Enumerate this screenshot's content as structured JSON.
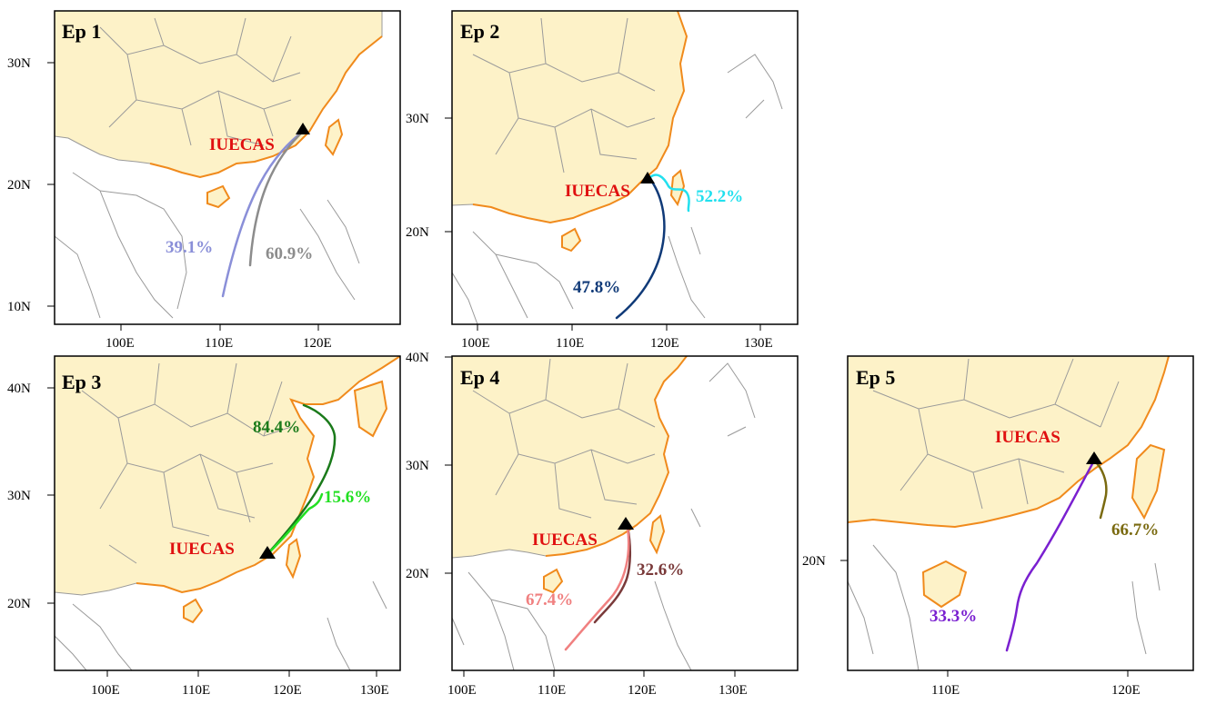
{
  "site_name": "IUECAS",
  "panels": [
    {
      "title": "Ep 1",
      "lat_ticks": [
        "30N",
        "20N",
        "10N"
      ],
      "lon_ticks": [
        "100E",
        "110E",
        "120E"
      ],
      "trajectories": [
        {
          "label": "39.1%",
          "color": "#8a8fd8"
        },
        {
          "label": "60.9%",
          "color": "#8c8c8c"
        }
      ]
    },
    {
      "title": "Ep 2",
      "lat_ticks": [
        "30N",
        "20N"
      ],
      "lon_ticks": [
        "100E",
        "110E",
        "120E",
        "130E"
      ],
      "trajectories": [
        {
          "label": "52.2%",
          "color": "#22e0ee"
        },
        {
          "label": "47.8%",
          "color": "#103a78"
        }
      ]
    },
    {
      "title": "Ep 3",
      "lat_ticks": [
        "40N",
        "30N",
        "20N"
      ],
      "lon_ticks": [
        "100E",
        "110E",
        "120E",
        "130E"
      ],
      "trajectories": [
        {
          "label": "84.4%",
          "color": "#1a7a1a"
        },
        {
          "label": "15.6%",
          "color": "#22e022"
        }
      ]
    },
    {
      "title": "Ep 4",
      "lat_ticks": [
        "40N",
        "30N",
        "20N"
      ],
      "lon_ticks": [
        "100E",
        "110E",
        "120E",
        "130E"
      ],
      "trajectories": [
        {
          "label": "32.6%",
          "color": "#7a3a3a"
        },
        {
          "label": "67.4%",
          "color": "#f08080"
        }
      ]
    },
    {
      "title": "Ep 5",
      "lat_ticks": [
        "20N"
      ],
      "lon_ticks": [
        "110E",
        "120E"
      ],
      "trajectories": [
        {
          "label": "66.7%",
          "color": "#7a6a10"
        },
        {
          "label": "33.3%",
          "color": "#7a20d0"
        }
      ]
    }
  ]
}
